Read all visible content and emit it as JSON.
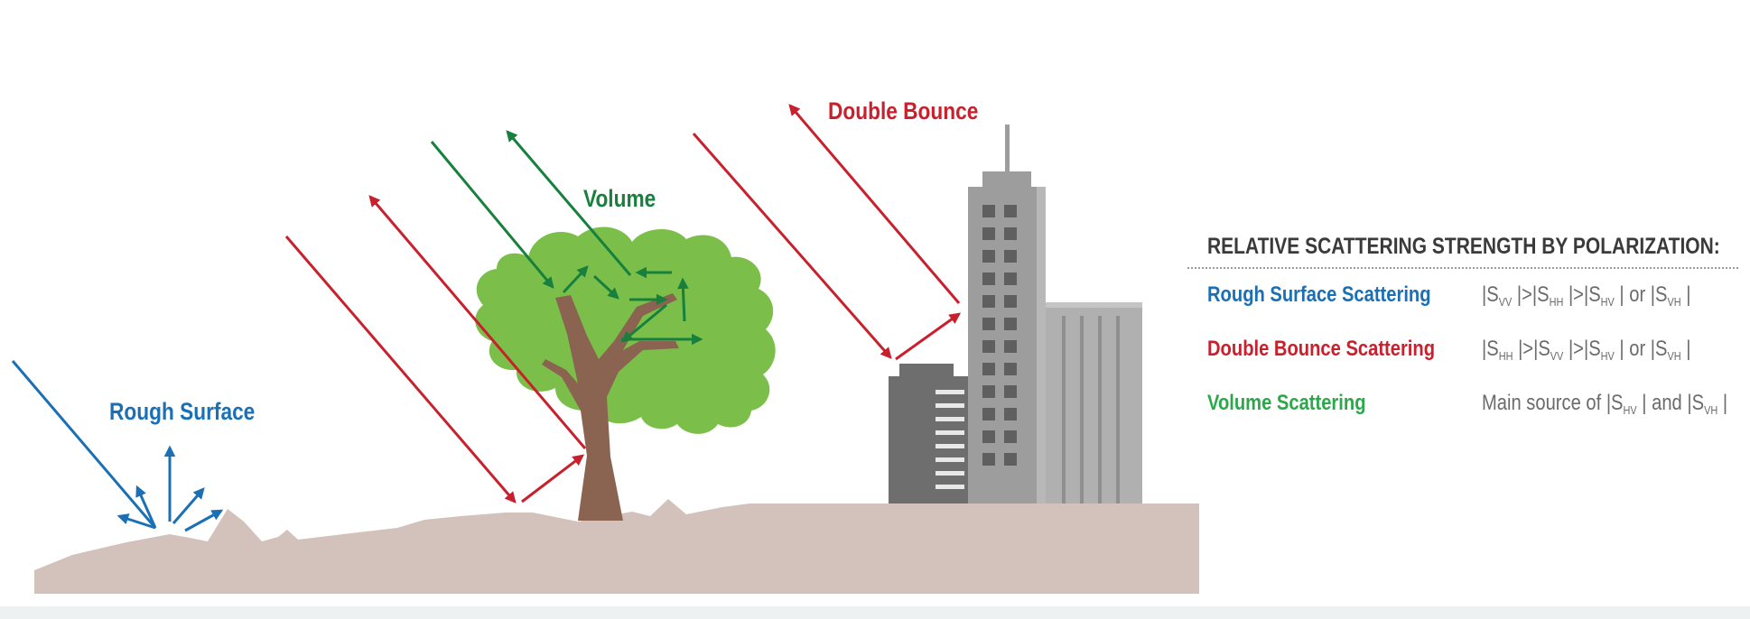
{
  "labels": {
    "rough_surface": "Rough Surface",
    "volume": "Volume",
    "double_bounce": "Double Bounce"
  },
  "legend": {
    "title": "RELATIVE SCATTERING STRENGTH BY POLARIZATION:",
    "rows": [
      {
        "name": "Rough Surface Scattering",
        "formula": {
          "prefix": "",
          "terms": [
            "VV",
            "HH",
            "HV",
            "VH"
          ],
          "separators": [
            ">",
            ">",
            "or"
          ]
        }
      },
      {
        "name": "Double Bounce Scattering",
        "formula": {
          "prefix": "",
          "terms": [
            "HH",
            "VV",
            "HV",
            "VH"
          ],
          "separators": [
            ">",
            ">",
            "or"
          ]
        }
      },
      {
        "name": "Volume Scattering",
        "formula": {
          "prefix": "Main source of",
          "terms": [
            "HV",
            "VH"
          ],
          "separators": [
            "and"
          ]
        }
      }
    ]
  },
  "colors": {
    "rough": "#1a6fb5",
    "double": "#c8202d",
    "volume": "#17803d",
    "volume_legend": "#2ba84a",
    "ground": "#d3c2bb",
    "tree_foliage": "#7bbf4a",
    "tree_trunk": "#8a6450",
    "building_light": "#b0b0b0",
    "building_mid": "#9d9d9d",
    "building_dark": "#6e6e6e",
    "text_dark": "#3a3a3a",
    "text_gray": "#6b6b6b"
  },
  "icons": {
    "arrow": "arrow-icon",
    "tree": "tree-icon",
    "building": "building-icon"
  }
}
